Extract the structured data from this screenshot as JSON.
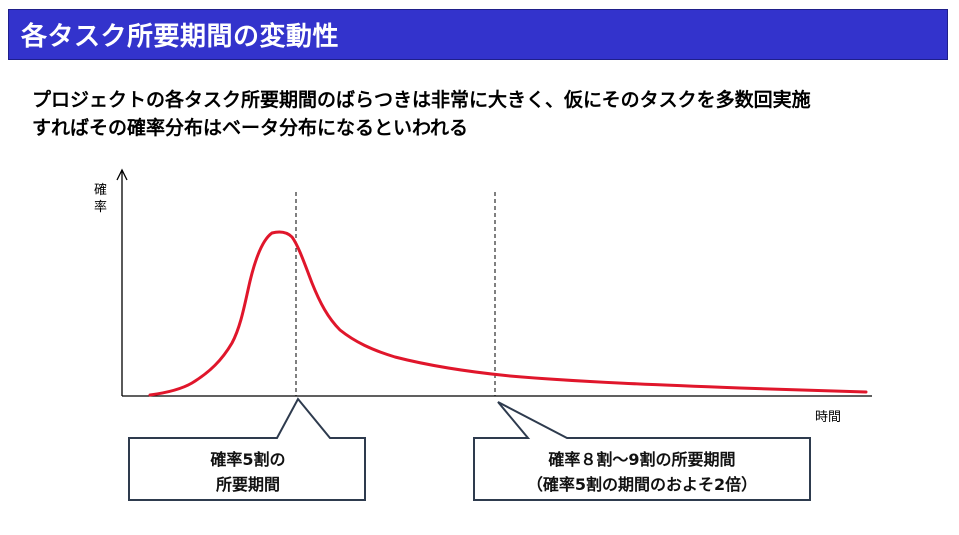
{
  "slide": {
    "title": "各タスク所要期間の変動性",
    "lead_line1": "プロジェクトの各タスク所要期間のばらつきは非常に大きく、仮にそのタスクを多数回実施",
    "lead_line2": "すればその確率分布はベータ分布になるといわれる"
  },
  "diagram": {
    "y_axis_label_1": "確",
    "y_axis_label_2": "率",
    "x_axis_label": "時間",
    "curve_color": "#e0162b",
    "title_bg_color": "#3333cc",
    "callout_border_color": "#2e3b4e",
    "callout_left_line1": "確率5割の",
    "callout_left_line2": "所要期間",
    "callout_right_line1": "確率８割～9割の所要期間",
    "callout_right_line2": "（確率5割の期間のおよそ2倍）"
  }
}
